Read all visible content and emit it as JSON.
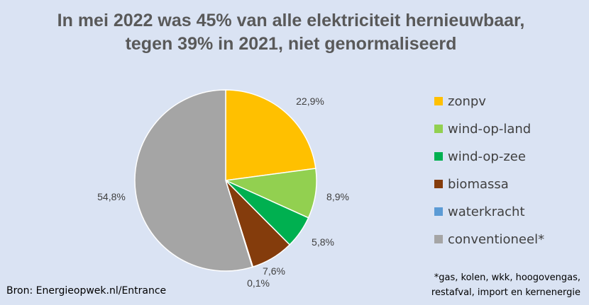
{
  "chart_data": {
    "type": "pie",
    "title_lines": [
      "In mei 2022 was 45% van alle elektriciteit hernieuwbaar,",
      "tegen 39% in 2021, niet genormaliseerd"
    ],
    "categories": [
      "zonpv",
      "wind-op-land",
      "wind-op-zee",
      "biomassa",
      "waterkracht",
      "conventioneel*"
    ],
    "values": [
      22.9,
      8.9,
      5.8,
      7.6,
      0.1,
      54.8
    ],
    "data_labels": [
      "22,9%",
      "8,9%",
      "5,8%",
      "7,6%",
      "0,1%",
      "54,8%"
    ],
    "colors": [
      "#ffc000",
      "#92d050",
      "#00b050",
      "#843c0c",
      "#5b9bd5",
      "#a5a5a5"
    ],
    "legend_position": "right",
    "source": "Bron: Energieopwek.nl/Entrance",
    "footnote_lines": [
      "*gas, kolen, wkk, hoogovengas,",
      "restafval, import en kernenergie"
    ]
  }
}
